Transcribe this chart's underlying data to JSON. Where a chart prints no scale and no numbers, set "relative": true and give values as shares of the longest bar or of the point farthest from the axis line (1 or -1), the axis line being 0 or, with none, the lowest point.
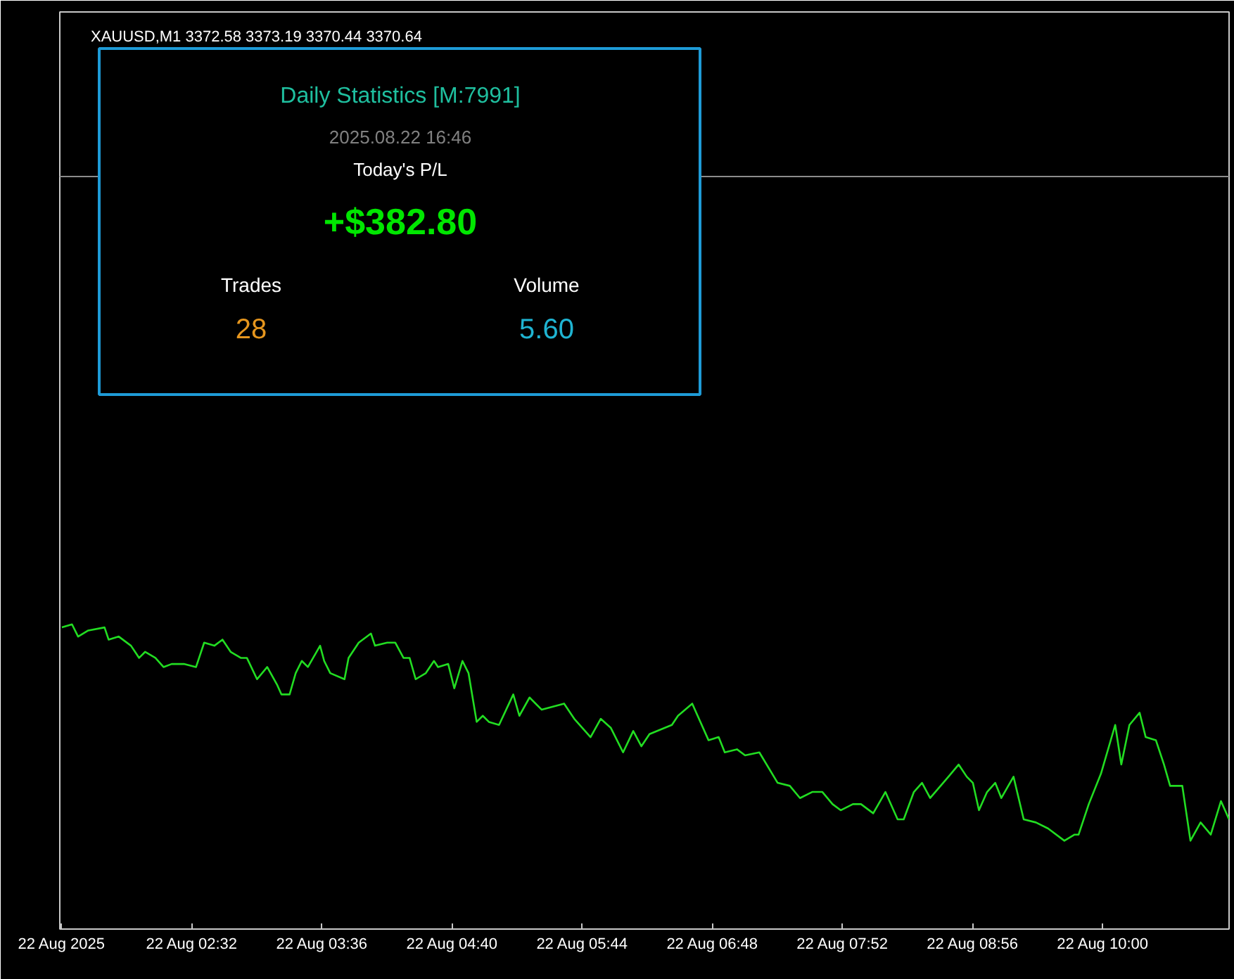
{
  "chart_data": {
    "type": "line",
    "title": "XAUUSD,M1  3372.58 3373.19 3370.44 3370.64",
    "relative": true,
    "x": [
      "2025-08-22T01:28",
      "2025-08-22T01:33",
      "2025-08-22T01:36",
      "2025-08-22T01:41",
      "2025-08-22T01:49",
      "2025-08-22T01:51",
      "2025-08-22T01:56",
      "2025-08-22T02:02",
      "2025-08-22T02:04",
      "2025-08-22T02:06",
      "2025-08-22T02:09",
      "2025-08-22T02:14",
      "2025-08-22T02:18",
      "2025-08-22T02:22",
      "2025-08-22T02:28",
      "2025-08-22T02:34",
      "2025-08-22T02:38",
      "2025-08-22T02:43",
      "2025-08-22T02:47",
      "2025-08-22T02:51",
      "2025-08-22T02:56",
      "2025-08-22T02:59",
      "2025-08-22T03:04",
      "2025-08-22T03:09",
      "2025-08-22T03:14",
      "2025-08-22T03:16",
      "2025-08-22T03:20",
      "2025-08-22T03:23",
      "2025-08-22T03:26",
      "2025-08-22T03:29",
      "2025-08-22T03:35",
      "2025-08-22T03:37",
      "2025-08-22T03:40",
      "2025-08-22T03:47",
      "2025-08-22T03:49",
      "2025-08-22T03:54",
      "2025-08-22T04:00",
      "2025-08-22T04:02",
      "2025-08-22T04:08",
      "2025-08-22T04:12",
      "2025-08-22T04:16",
      "2025-08-22T04:19",
      "2025-08-22T04:22",
      "2025-08-22T04:27",
      "2025-08-22T04:31",
      "2025-08-22T04:33",
      "2025-08-22T04:38",
      "2025-08-22T04:41",
      "2025-08-22T04:45",
      "2025-08-22T04:48",
      "2025-08-22T04:52",
      "2025-08-22T04:55",
      "2025-08-22T04:58",
      "2025-08-22T05:03",
      "2025-08-22T05:10",
      "2025-08-22T05:13",
      "2025-08-22T05:18",
      "2025-08-22T05:24",
      "2025-08-22T05:35",
      "2025-08-22T05:40",
      "2025-08-22T05:48",
      "2025-08-22T05:53",
      "2025-08-22T05:58",
      "2025-08-22T06:04",
      "2025-08-22T06:09",
      "2025-08-22T06:13",
      "2025-08-22T06:17",
      "2025-08-22T06:28",
      "2025-08-22T06:31",
      "2025-08-22T06:38",
      "2025-08-22T06:46",
      "2025-08-22T06:51",
      "2025-08-22T06:54",
      "2025-08-22T07:00",
      "2025-08-22T07:04",
      "2025-08-22T07:11",
      "2025-08-22T07:20",
      "2025-08-22T07:26",
      "2025-08-22T07:31",
      "2025-08-22T07:37",
      "2025-08-22T07:42",
      "2025-08-22T07:47",
      "2025-08-22T07:51",
      "2025-08-22T07:57",
      "2025-08-22T08:01",
      "2025-08-22T08:07",
      "2025-08-22T08:13",
      "2025-08-22T08:19",
      "2025-08-22T08:22",
      "2025-08-22T08:27",
      "2025-08-22T08:31",
      "2025-08-22T08:35",
      "2025-08-22T08:44",
      "2025-08-22T08:49",
      "2025-08-22T08:53",
      "2025-08-22T08:56",
      "2025-08-22T08:59",
      "2025-08-22T09:03",
      "2025-08-22T09:07",
      "2025-08-22T09:10",
      "2025-08-22T09:16",
      "2025-08-22T09:21",
      "2025-08-22T09:27",
      "2025-08-22T09:33",
      "2025-08-22T09:41",
      "2025-08-22T09:46",
      "2025-08-22T09:48",
      "2025-08-22T09:53",
      "2025-08-22T09:59",
      "2025-08-22T10:06",
      "2025-08-22T10:09",
      "2025-08-22T10:13",
      "2025-08-22T10:18",
      "2025-08-22T10:21",
      "2025-08-22T10:26",
      "2025-08-22T10:30",
      "2025-08-22T10:33",
      "2025-08-22T10:39",
      "2025-08-22T10:43",
      "2025-08-22T10:48",
      "2025-08-22T10:53",
      "2025-08-22T10:58",
      "2025-08-22T11:02"
    ],
    "series": [
      {
        "color": "#22dd22",
        "values": [
          0.99,
          1.0,
          0.96,
          0.98,
          0.99,
          0.95,
          0.96,
          0.93,
          0.91,
          0.89,
          0.91,
          0.89,
          0.86,
          0.87,
          0.87,
          0.86,
          0.94,
          0.93,
          0.95,
          0.91,
          0.89,
          0.89,
          0.82,
          0.86,
          0.8,
          0.77,
          0.77,
          0.84,
          0.88,
          0.86,
          0.93,
          0.88,
          0.84,
          0.82,
          0.89,
          0.94,
          0.97,
          0.93,
          0.94,
          0.94,
          0.89,
          0.89,
          0.82,
          0.84,
          0.88,
          0.86,
          0.87,
          0.79,
          0.88,
          0.84,
          0.68,
          0.7,
          0.68,
          0.67,
          0.77,
          0.7,
          0.76,
          0.72,
          0.74,
          0.69,
          0.63,
          0.69,
          0.66,
          0.58,
          0.65,
          0.6,
          0.64,
          0.67,
          0.7,
          0.74,
          0.62,
          0.63,
          0.58,
          0.59,
          0.57,
          0.58,
          0.48,
          0.47,
          0.43,
          0.45,
          0.45,
          0.41,
          0.39,
          0.41,
          0.41,
          0.38,
          0.45,
          0.36,
          0.36,
          0.45,
          0.48,
          0.43,
          0.5,
          0.54,
          0.5,
          0.48,
          0.39,
          0.45,
          0.48,
          0.43,
          0.5,
          0.36,
          0.35,
          0.33,
          0.29,
          0.31,
          0.31,
          0.41,
          0.51,
          0.67,
          0.54,
          0.67,
          0.71,
          0.63,
          0.62,
          0.54,
          0.47,
          0.47,
          0.29,
          0.35,
          0.31,
          0.42,
          0.36
        ]
      }
    ],
    "xlim": [
      "2025-08-22T01:27",
      "2025-08-22T11:02"
    ],
    "xticks": [
      {
        "value": "2025-08-22T01:28",
        "label": "22 Aug 2025"
      },
      {
        "value": "2025-08-22T02:32",
        "label": "22 Aug 02:32"
      },
      {
        "value": "2025-08-22T03:36",
        "label": "22 Aug 03:36"
      },
      {
        "value": "2025-08-22T04:40",
        "label": "22 Aug 04:40"
      },
      {
        "value": "2025-08-22T05:44",
        "label": "22 Aug 05:44"
      },
      {
        "value": "2025-08-22T06:48",
        "label": "22 Aug 06:48"
      },
      {
        "value": "2025-08-22T07:52",
        "label": "22 Aug 07:52"
      },
      {
        "value": "2025-08-22T08:56",
        "label": "22 Aug 08:56"
      },
      {
        "value": "2025-08-22T10:00",
        "label": "22 Aug 10:00"
      }
    ],
    "ref_lines": [
      {
        "axis": "y",
        "value": 2.47,
        "color": "#8c8c8c"
      }
    ],
    "annotations": [
      "Daily Statistics [M:7991]",
      "2025.08.22 16:46",
      "Today's P/L",
      "+$382.80",
      "Trades",
      "28",
      "Volume",
      "5.60"
    ]
  }
}
